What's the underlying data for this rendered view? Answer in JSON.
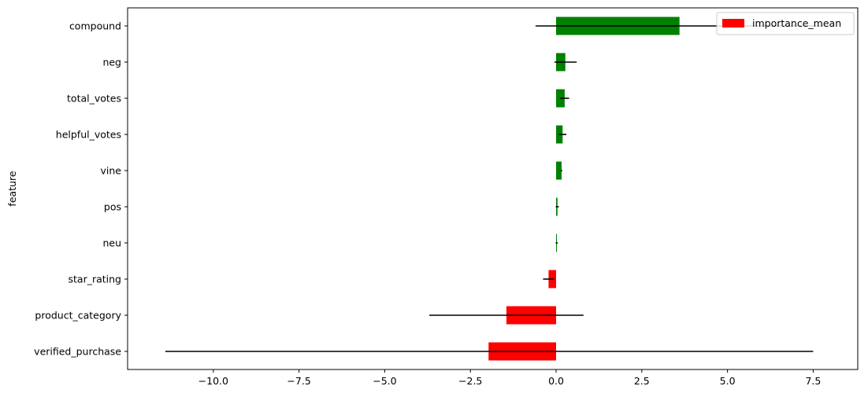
{
  "chart_data": {
    "type": "bar",
    "orientation": "horizontal",
    "title": "",
    "xlabel": "",
    "ylabel": "feature",
    "xlim": [
      -12.5,
      8.8
    ],
    "xticks": [
      -10.0,
      -7.5,
      -5.0,
      -2.5,
      0.0,
      2.5,
      5.0,
      7.5
    ],
    "xtick_labels": [
      "−10.0",
      "−7.5",
      "−5.0",
      "−2.5",
      "0.0",
      "2.5",
      "5.0",
      "7.5"
    ],
    "categories": [
      "compound",
      "neg",
      "total_votes",
      "helpful_votes",
      "vine",
      "pos",
      "neu",
      "star_rating",
      "product_category",
      "verified_purchase"
    ],
    "series": [
      {
        "name": "importance_mean",
        "values": [
          3.6,
          0.27,
          0.25,
          0.19,
          0.16,
          0.04,
          0.02,
          -0.22,
          -1.45,
          -1.97
        ],
        "error_low": [
          -0.6,
          -0.05,
          0.12,
          0.08,
          0.14,
          -0.01,
          -0.01,
          -0.38,
          -3.7,
          -11.4
        ],
        "error_high": [
          7.8,
          0.6,
          0.38,
          0.3,
          0.18,
          0.08,
          0.05,
          -0.06,
          0.8,
          7.5
        ]
      }
    ],
    "colors": {
      "positive": "#008000",
      "negative": "#ff0000",
      "error_bar": "#000000",
      "legend_swatch": "#ff0000"
    },
    "grid": false,
    "legend": {
      "position": "top-right",
      "entries": [
        "importance_mean"
      ]
    }
  }
}
